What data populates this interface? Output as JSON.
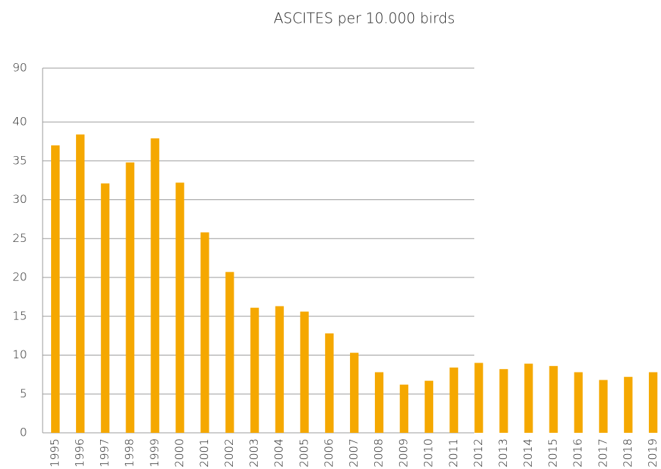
{
  "chart_data": {
    "type": "bar",
    "title": "ASCITES per 10.000 birds",
    "categories": [
      "1995",
      "1996",
      "1997",
      "1998",
      "1999",
      "2000",
      "2001",
      "2002",
      "2003",
      "2004",
      "2005",
      "2006",
      "2007",
      "2008",
      "2009",
      "2010",
      "2011",
      "2012",
      "2013",
      "2014",
      "2015",
      "2016",
      "2017",
      "2018",
      "2019"
    ],
    "values": [
      37.0,
      38.4,
      32.1,
      34.8,
      37.9,
      32.2,
      25.8,
      20.7,
      16.1,
      16.3,
      15.6,
      12.8,
      10.3,
      7.8,
      6.2,
      6.7,
      8.4,
      9.0,
      8.2,
      8.9,
      8.6,
      7.8,
      6.8,
      7.2,
      7.8
    ],
    "color": "#f5a800",
    "ylim": [
      0,
      90
    ],
    "yticks": [
      0,
      5,
      10,
      15,
      20,
      25,
      30,
      35,
      40,
      90
    ],
    "axis_break": [
      40,
      90
    ],
    "grid": true
  }
}
